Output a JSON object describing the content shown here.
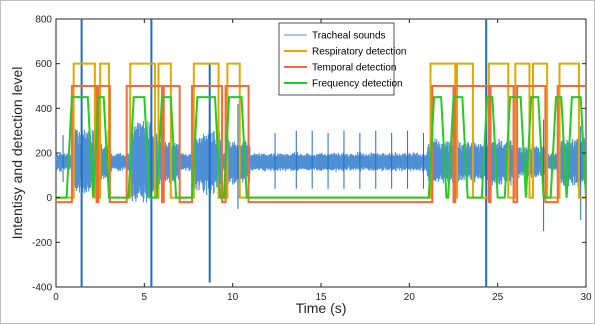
{
  "chart_data": {
    "type": "line",
    "xlabel": "Time (s)",
    "ylabel": "Intentisy and detection level",
    "xlim": [
      0,
      30
    ],
    "ylim": [
      -400,
      800
    ],
    "xticks": [
      0,
      5,
      10,
      15,
      20,
      25,
      30
    ],
    "yticks": [
      -400,
      -200,
      0,
      200,
      400,
      600,
      800
    ],
    "grid": false,
    "legend_position": "top-center",
    "colors": {
      "tracheal": "#4f8fd6",
      "tracheal_dark": "#1f6fc0",
      "respiratory": "#e0a800",
      "temporal": "#f26b3a",
      "frequency": "#22cc22"
    },
    "signal": {
      "baseline": 160,
      "amplitude_quiet": 45,
      "sample_step": 0.025,
      "bursts": [
        {
          "start": 0.9,
          "end": 2.3,
          "amplitude": 160
        },
        {
          "start": 2.3,
          "end": 3.0,
          "amplitude": 90
        },
        {
          "start": 4.2,
          "end": 5.9,
          "amplitude": 190
        },
        {
          "start": 5.9,
          "end": 7.0,
          "amplitude": 100
        },
        {
          "start": 7.8,
          "end": 9.4,
          "amplitude": 150
        },
        {
          "start": 9.6,
          "end": 11.0,
          "amplitude": 110
        },
        {
          "start": 21.0,
          "end": 22.4,
          "amplitude": 110
        },
        {
          "start": 22.4,
          "end": 24.5,
          "amplitude": 100
        },
        {
          "start": 24.5,
          "end": 26.0,
          "amplitude": 110
        },
        {
          "start": 26.0,
          "end": 27.7,
          "amplitude": 80
        },
        {
          "start": 28.5,
          "end": 30.0,
          "amplitude": 120
        }
      ],
      "spikes": [
        {
          "x": 0.4,
          "low": 70,
          "high": 280
        },
        {
          "x": 1.45,
          "low": -400,
          "high": 800
        },
        {
          "x": 2.95,
          "low": 40,
          "high": 300
        },
        {
          "x": 5.4,
          "low": -400,
          "high": 800
        },
        {
          "x": 8.7,
          "low": -380,
          "high": 600
        },
        {
          "x": 10.3,
          "low": -50,
          "high": 420
        },
        {
          "x": 12.4,
          "low": 40,
          "high": 290
        },
        {
          "x": 13.6,
          "low": 40,
          "high": 300
        },
        {
          "x": 14.5,
          "low": 40,
          "high": 300
        },
        {
          "x": 15.4,
          "low": 40,
          "high": 290
        },
        {
          "x": 16.3,
          "low": 40,
          "high": 300
        },
        {
          "x": 17.2,
          "low": 40,
          "high": 290
        },
        {
          "x": 18.1,
          "low": 40,
          "high": 300
        },
        {
          "x": 19.0,
          "low": 40,
          "high": 290
        },
        {
          "x": 19.9,
          "low": 40,
          "high": 300
        },
        {
          "x": 20.8,
          "low": 40,
          "high": 290
        },
        {
          "x": 24.35,
          "low": -400,
          "high": 800
        },
        {
          "x": 27.6,
          "low": -150,
          "high": 350
        },
        {
          "x": 29.7,
          "low": -100,
          "high": 320
        }
      ]
    },
    "series": [
      {
        "name": "Tracheal sounds",
        "style": "signal"
      },
      {
        "name": "Respiratory detection",
        "style": "step",
        "low": 0,
        "high": 600,
        "intervals": [
          [
            1.0,
            2.2
          ],
          [
            2.5,
            3.0
          ],
          [
            4.2,
            5.6
          ],
          [
            5.8,
            6.5
          ],
          [
            7.8,
            9.2
          ],
          [
            9.7,
            10.4
          ],
          [
            21.2,
            22.6
          ],
          [
            22.7,
            23.6
          ],
          [
            24.5,
            25.6
          ],
          [
            26.0,
            26.8
          ],
          [
            27.0,
            27.8
          ],
          [
            28.5,
            29.6
          ]
        ]
      },
      {
        "name": "Temporal detection",
        "style": "step",
        "low": -20,
        "high": 500,
        "intervals": [
          [
            0.9,
            2.3
          ],
          [
            2.4,
            3.05
          ],
          [
            4.0,
            6.0
          ],
          [
            6.1,
            7.0
          ],
          [
            7.7,
            9.4
          ],
          [
            9.6,
            10.9
          ],
          [
            21.3,
            22.5
          ],
          [
            22.6,
            24.5
          ],
          [
            24.6,
            25.9
          ],
          [
            26.1,
            27.7
          ],
          [
            28.4,
            30.0
          ]
        ]
      },
      {
        "name": "Frequency detection",
        "style": "trapezoid",
        "low": 0,
        "high": 450,
        "ramp": 0.3,
        "intervals": [
          [
            0.6,
            2.1
          ],
          [
            2.1,
            3.0
          ],
          [
            4.1,
            5.3
          ],
          [
            5.7,
            6.8
          ],
          [
            7.7,
            9.3
          ],
          [
            9.5,
            10.8
          ],
          [
            21.1,
            22.1
          ],
          [
            22.2,
            23.3
          ],
          [
            24.1,
            25.0
          ],
          [
            25.4,
            26.6
          ],
          [
            26.6,
            27.6
          ],
          [
            28.0,
            28.9
          ],
          [
            28.9,
            30.0
          ]
        ]
      }
    ],
    "legend": [
      {
        "label": "Tracheal sounds",
        "color": "#4f8fd6"
      },
      {
        "label": "Respiratory detection",
        "color": "#e0a800"
      },
      {
        "label": "Temporal detection",
        "color": "#f26b3a"
      },
      {
        "label": "Frequency detection",
        "color": "#22cc22"
      }
    ]
  }
}
